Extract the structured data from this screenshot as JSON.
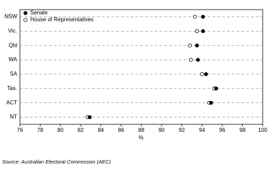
{
  "chart_data": {
    "type": "dot",
    "categories": [
      "NSW",
      "Vic.",
      "Qld",
      "WA",
      "SA",
      "Tas.",
      "ACT",
      "NT"
    ],
    "series": [
      {
        "name": "Senate",
        "color": "#000000",
        "values": [
          94.1,
          94.1,
          93.5,
          93.6,
          94.4,
          95.4,
          94.9,
          82.9
        ]
      },
      {
        "name": "House of Representatives",
        "color": "#ffffff",
        "values": [
          93.3,
          93.5,
          92.8,
          92.9,
          94.0,
          95.2,
          94.7,
          82.7
        ]
      }
    ],
    "xlim": [
      76,
      100
    ],
    "xticks": [
      76,
      78,
      80,
      82,
      84,
      86,
      88,
      90,
      92,
      94,
      96,
      98,
      100
    ],
    "xlabel": "%",
    "legend": "top-left",
    "grid": true,
    "source": "Source: Australian Electoral Commission (AEC)"
  }
}
